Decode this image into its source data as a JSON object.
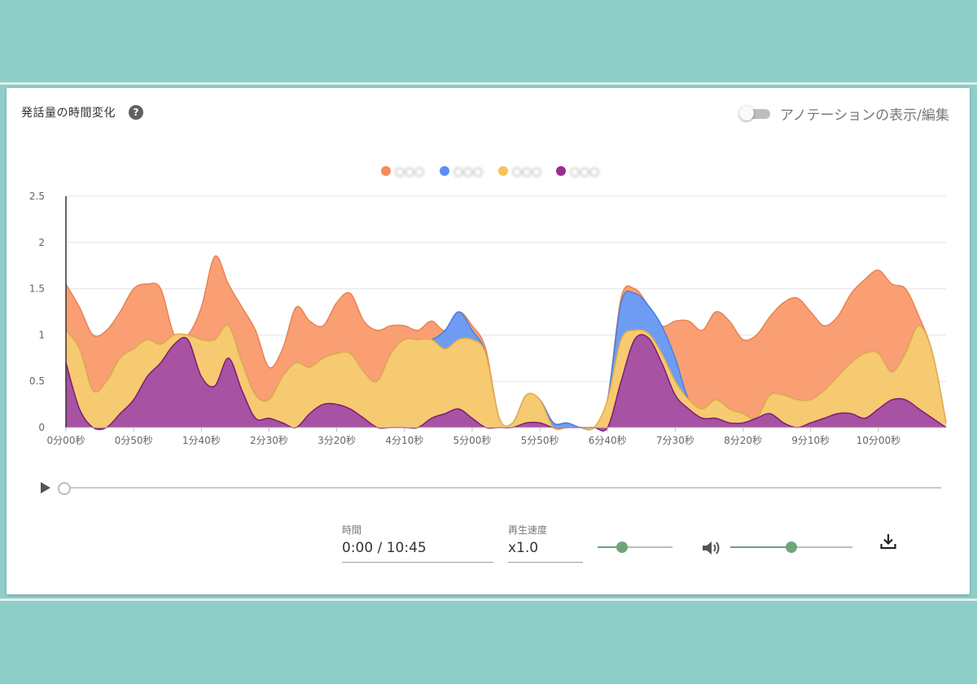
{
  "header": {
    "title": "発話量の時間変化",
    "help_icon": "help-circle-icon",
    "toggle_label": "アノテーションの表示/編集",
    "toggle_state": "off"
  },
  "legend": [
    {
      "label": "〇〇〇",
      "color": "#f48c5a"
    },
    {
      "label": "〇〇〇",
      "color": "#5b8ff5"
    },
    {
      "label": "〇〇〇",
      "color": "#f5c45a"
    },
    {
      "label": "〇〇〇",
      "color": "#9b2c95"
    }
  ],
  "player": {
    "time_label": "時間",
    "time_value": "0:00 / 10:45",
    "speed_label": "再生速度",
    "speed_value": "x1.0",
    "speed_slider_fraction": 0.33,
    "volume_slider_fraction": 0.5,
    "progress_fraction": 0.0,
    "icons": {
      "play": "play-icon",
      "volume": "volume-icon",
      "download": "download-icon"
    }
  },
  "chart_data": {
    "type": "area",
    "stacked": true,
    "ylim": [
      0,
      2.5
    ],
    "y_ticks": [
      "0",
      "0.5",
      "1",
      "1.5",
      "2",
      "2.5"
    ],
    "x_ticks": [
      "0分00秒",
      "0分50秒",
      "1分40秒",
      "2分30秒",
      "3分20秒",
      "4分10秒",
      "5分00秒",
      "5分50秒",
      "6分40秒",
      "7分30秒",
      "8分20秒",
      "9分10秒",
      "10分00秒"
    ],
    "x_tick_seconds": [
      0,
      50,
      100,
      150,
      200,
      250,
      300,
      350,
      400,
      450,
      500,
      550,
      600
    ],
    "xlim": [
      0,
      650
    ],
    "grid": true,
    "x": [
      0,
      10,
      20,
      30,
      40,
      50,
      60,
      70,
      80,
      90,
      100,
      110,
      120,
      130,
      140,
      150,
      160,
      170,
      180,
      190,
      200,
      210,
      220,
      230,
      240,
      250,
      260,
      270,
      280,
      290,
      300,
      310,
      320,
      330,
      340,
      350,
      360,
      370,
      380,
      390,
      400,
      410,
      420,
      430,
      440,
      450,
      460,
      470,
      480,
      490,
      500,
      510,
      520,
      530,
      540,
      550,
      560,
      570,
      580,
      590,
      600,
      610,
      620,
      630,
      640,
      650
    ],
    "series": [
      {
        "values": [
          0.7,
          0.2,
          0.0,
          0.0,
          0.15,
          0.3,
          0.55,
          0.7,
          0.9,
          0.95,
          0.55,
          0.45,
          0.75,
          0.4,
          0.1,
          0.1,
          0.05,
          0.0,
          0.15,
          0.25,
          0.25,
          0.2,
          0.1,
          0.0,
          0.0,
          0.0,
          0.0,
          0.1,
          0.15,
          0.2,
          0.1,
          0.0,
          0.0,
          0.0,
          0.05,
          0.05,
          0.0,
          0.0,
          0.0,
          0.0,
          0.0,
          0.5,
          0.95,
          0.97,
          0.7,
          0.35,
          0.2,
          0.1,
          0.1,
          0.05,
          0.05,
          0.1,
          0.15,
          0.05,
          0.0,
          0.05,
          0.1,
          0.15,
          0.15,
          0.1,
          0.2,
          0.3,
          0.3,
          0.2,
          0.1,
          0.0
        ]
      },
      {
        "values": [
          0.35,
          0.65,
          0.4,
          0.5,
          0.6,
          0.55,
          0.4,
          0.2,
          0.1,
          0.05,
          0.4,
          0.5,
          0.35,
          0.3,
          0.25,
          0.2,
          0.5,
          0.7,
          0.5,
          0.5,
          0.55,
          0.6,
          0.5,
          0.5,
          0.8,
          0.95,
          0.95,
          0.85,
          0.7,
          0.75,
          0.85,
          0.8,
          0.1,
          0.05,
          0.3,
          0.25,
          0.0,
          0.0,
          0.0,
          0.0,
          0.3,
          0.45,
          0.1,
          0.05,
          0.1,
          0.15,
          0.1,
          0.1,
          0.2,
          0.15,
          0.1,
          0.0,
          0.2,
          0.3,
          0.3,
          0.25,
          0.3,
          0.4,
          0.55,
          0.7,
          0.6,
          0.3,
          0.5,
          0.9,
          0.7,
          0.05
        ]
      },
      {
        "values": [
          0.0,
          0.0,
          0.0,
          0.0,
          0.0,
          0.0,
          0.0,
          0.0,
          0.0,
          0.0,
          0.0,
          0.0,
          0.0,
          0.0,
          0.0,
          0.0,
          0.0,
          0.0,
          0.0,
          0.0,
          0.0,
          0.0,
          0.0,
          0.0,
          0.0,
          0.0,
          0.0,
          0.0,
          0.2,
          0.3,
          0.1,
          0.0,
          0.0,
          0.0,
          0.0,
          0.0,
          0.05,
          0.05,
          0.0,
          0.0,
          0.0,
          0.4,
          0.4,
          0.3,
          0.3,
          0.25,
          0.0,
          0.0,
          0.0,
          0.0,
          0.0,
          0.0,
          0.0,
          0.0,
          0.0,
          0.0,
          0.0,
          0.0,
          0.0,
          0.0,
          0.0,
          0.0,
          0.0,
          0.0,
          0.0,
          0.0
        ]
      },
      {
        "values": [
          0.5,
          0.45,
          0.6,
          0.55,
          0.5,
          0.65,
          0.6,
          0.6,
          0.0,
          0.0,
          0.35,
          0.9,
          0.45,
          0.6,
          0.7,
          0.35,
          0.3,
          0.6,
          0.5,
          0.35,
          0.55,
          0.65,
          0.55,
          0.55,
          0.3,
          0.15,
          0.1,
          0.2,
          0.0,
          0.0,
          0.05,
          0.05,
          0.0,
          0.0,
          0.0,
          0.0,
          0.0,
          0.0,
          0.0,
          0.0,
          0.0,
          0.05,
          0.05,
          0.0,
          0.0,
          0.4,
          0.85,
          0.85,
          0.95,
          0.95,
          0.8,
          0.9,
          0.85,
          1.0,
          1.1,
          0.95,
          0.7,
          0.65,
          0.75,
          0.8,
          0.9,
          0.95,
          0.7,
          0.1,
          0.0,
          0.0
        ]
      }
    ]
  }
}
